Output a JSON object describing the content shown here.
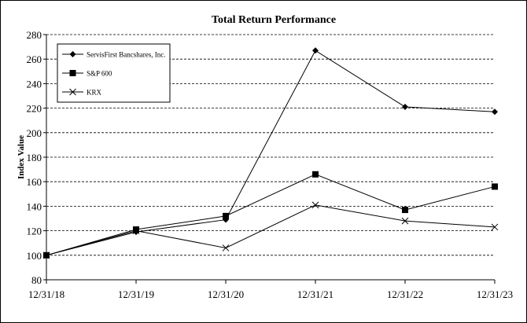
{
  "chart_data": {
    "type": "line",
    "title": "Total Return Performance",
    "ylabel": "Index Value",
    "xlabel": "",
    "categories": [
      "12/31/18",
      "12/31/19",
      "12/31/20",
      "12/31/21",
      "12/31/22",
      "12/31/23"
    ],
    "ylim": [
      80,
      280
    ],
    "yticks": [
      80,
      100,
      120,
      140,
      160,
      180,
      200,
      220,
      240,
      260,
      280
    ],
    "grid": true,
    "legend": "top-left",
    "series": [
      {
        "name": "ServisFirst Bancshares, Inc.",
        "marker": "diamond",
        "values": [
          100,
          119,
          129,
          267,
          221,
          217
        ]
      },
      {
        "name": "S&P 600",
        "marker": "square",
        "values": [
          100,
          121,
          132,
          166,
          137,
          156
        ]
      },
      {
        "name": "KRX",
        "marker": "x",
        "values": [
          100,
          120,
          106,
          141,
          128,
          123
        ]
      }
    ]
  }
}
